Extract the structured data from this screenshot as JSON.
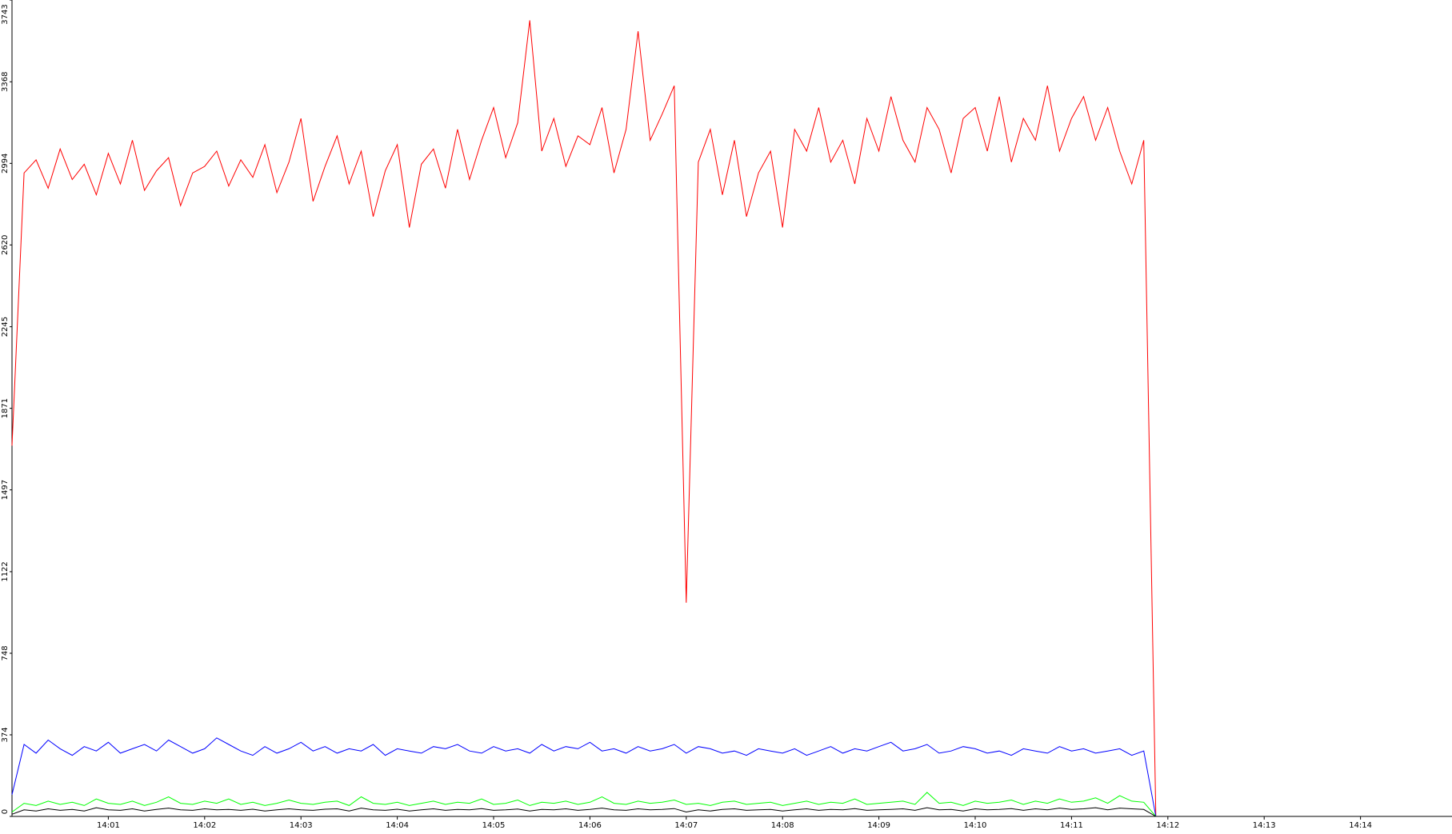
{
  "chart_data": {
    "type": "line",
    "x": [
      0,
      0.125,
      0.25,
      0.375,
      0.5,
      0.625,
      0.75,
      0.875,
      1,
      1.125,
      1.25,
      1.375,
      1.5,
      1.625,
      1.75,
      1.875,
      2,
      2.125,
      2.25,
      2.375,
      2.5,
      2.625,
      2.75,
      2.875,
      3,
      3.125,
      3.25,
      3.375,
      3.5,
      3.625,
      3.75,
      3.875,
      4,
      4.125,
      4.25,
      4.375,
      4.5,
      4.625,
      4.75,
      4.875,
      5,
      5.125,
      5.25,
      5.375,
      5.5,
      5.625,
      5.75,
      5.875,
      6,
      6.125,
      6.25,
      6.375,
      6.5,
      6.625,
      6.75,
      6.875,
      7,
      7.125,
      7.25,
      7.375,
      7.5,
      7.625,
      7.75,
      7.875,
      8,
      8.125,
      8.25,
      8.375,
      8.5,
      8.625,
      8.75,
      8.875,
      9,
      9.125,
      9.25,
      9.375,
      9.5,
      9.625,
      9.75,
      9.875,
      10,
      10.125,
      10.25,
      10.375,
      10.5,
      10.625,
      10.75,
      10.875,
      11,
      11.125,
      11.25,
      11.375,
      11.5,
      11.625,
      11.75,
      11.875
    ],
    "series": [
      {
        "color": "#ff0000",
        "values": [
          1700,
          2950,
          3010,
          2880,
          3060,
          2920,
          2990,
          2850,
          3040,
          2900,
          3100,
          2870,
          2960,
          3020,
          2800,
          2950,
          2980,
          3050,
          2890,
          3010,
          2930,
          3080,
          2860,
          3000,
          3200,
          2820,
          2980,
          3120,
          2900,
          3050,
          2750,
          2960,
          3080,
          2700,
          2990,
          3060,
          2880,
          3150,
          2920,
          3100,
          3250,
          3020,
          3180,
          3650,
          3050,
          3200,
          2980,
          3120,
          3080,
          3250,
          2950,
          3150,
          3600,
          3100,
          3220,
          3350,
          980,
          3000,
          3150,
          2850,
          3100,
          2750,
          2950,
          3050,
          2700,
          3150,
          3050,
          3250,
          3000,
          3100,
          2900,
          3200,
          3050,
          3300,
          3100,
          3000,
          3250,
          3150,
          2950,
          3200,
          3250,
          3050,
          3300,
          3000,
          3200,
          3100,
          3350,
          3050,
          3200,
          3300,
          3100,
          3250,
          3050,
          2900,
          3100,
          0
        ]
      },
      {
        "color": "#0000ff",
        "values": [
          100,
          330,
          290,
          350,
          310,
          280,
          320,
          300,
          340,
          290,
          310,
          330,
          300,
          350,
          320,
          290,
          310,
          360,
          330,
          300,
          280,
          320,
          290,
          310,
          340,
          300,
          320,
          290,
          310,
          300,
          330,
          280,
          310,
          300,
          290,
          320,
          310,
          330,
          300,
          290,
          320,
          300,
          310,
          290,
          330,
          300,
          320,
          310,
          340,
          300,
          310,
          290,
          320,
          300,
          310,
          330,
          290,
          320,
          310,
          290,
          300,
          280,
          310,
          300,
          290,
          310,
          280,
          300,
          320,
          290,
          310,
          300,
          320,
          340,
          300,
          310,
          330,
          290,
          300,
          320,
          310,
          290,
          300,
          280,
          310,
          300,
          290,
          320,
          300,
          310,
          290,
          300,
          310,
          280,
          300,
          0
        ]
      },
      {
        "color": "#00ff00",
        "values": [
          20,
          60,
          50,
          70,
          55,
          65,
          50,
          80,
          60,
          55,
          70,
          50,
          65,
          90,
          60,
          55,
          70,
          60,
          80,
          55,
          65,
          50,
          60,
          75,
          60,
          55,
          65,
          70,
          50,
          90,
          60,
          55,
          65,
          50,
          60,
          70,
          55,
          65,
          60,
          80,
          55,
          60,
          75,
          50,
          65,
          60,
          70,
          55,
          65,
          90,
          60,
          55,
          70,
          60,
          65,
          75,
          55,
          60,
          50,
          65,
          70,
          55,
          60,
          65,
          50,
          60,
          70,
          55,
          65,
          60,
          80,
          55,
          60,
          65,
          70,
          55,
          110,
          60,
          65,
          50,
          70,
          60,
          65,
          75,
          55,
          70,
          60,
          80,
          65,
          70,
          85,
          60,
          95,
          70,
          65,
          0
        ]
      },
      {
        "color": "#000000",
        "values": [
          10,
          30,
          25,
          35,
          28,
          32,
          25,
          40,
          30,
          28,
          35,
          25,
          32,
          38,
          30,
          28,
          35,
          30,
          32,
          28,
          33,
          25,
          30,
          35,
          30,
          28,
          33,
          35,
          25,
          38,
          30,
          28,
          33,
          25,
          30,
          35,
          28,
          32,
          30,
          36,
          28,
          30,
          34,
          25,
          32,
          30,
          35,
          28,
          32,
          38,
          30,
          28,
          35,
          30,
          32,
          36,
          20,
          30,
          25,
          32,
          35,
          28,
          30,
          32,
          25,
          30,
          35,
          28,
          32,
          30,
          36,
          28,
          30,
          32,
          35,
          28,
          40,
          30,
          32,
          25,
          35,
          30,
          32,
          36,
          28,
          35,
          30,
          38,
          32,
          35,
          40,
          30,
          38,
          35,
          32,
          0
        ]
      }
    ],
    "xlim": [
      0,
      14.95
    ],
    "xticks": [
      {
        "value": 1,
        "label": "14:01"
      },
      {
        "value": 2,
        "label": "14:02"
      },
      {
        "value": 3,
        "label": "14:03"
      },
      {
        "value": 4,
        "label": "14:04"
      },
      {
        "value": 5,
        "label": "14:05"
      },
      {
        "value": 6,
        "label": "14:06"
      },
      {
        "value": 7,
        "label": "14:07"
      },
      {
        "value": 8,
        "label": "14:08"
      },
      {
        "value": 9,
        "label": "14:09"
      },
      {
        "value": 10,
        "label": "14:10"
      },
      {
        "value": 11,
        "label": "14:11"
      },
      {
        "value": 12,
        "label": "14:12"
      },
      {
        "value": 13,
        "label": "14:13"
      },
      {
        "value": 14,
        "label": "14:14"
      }
    ],
    "ylim": [
      0,
      3743
    ],
    "yticks": [
      0,
      374,
      748,
      1122,
      1497,
      1871,
      2245,
      2620,
      2994,
      3368,
      3743
    ]
  }
}
